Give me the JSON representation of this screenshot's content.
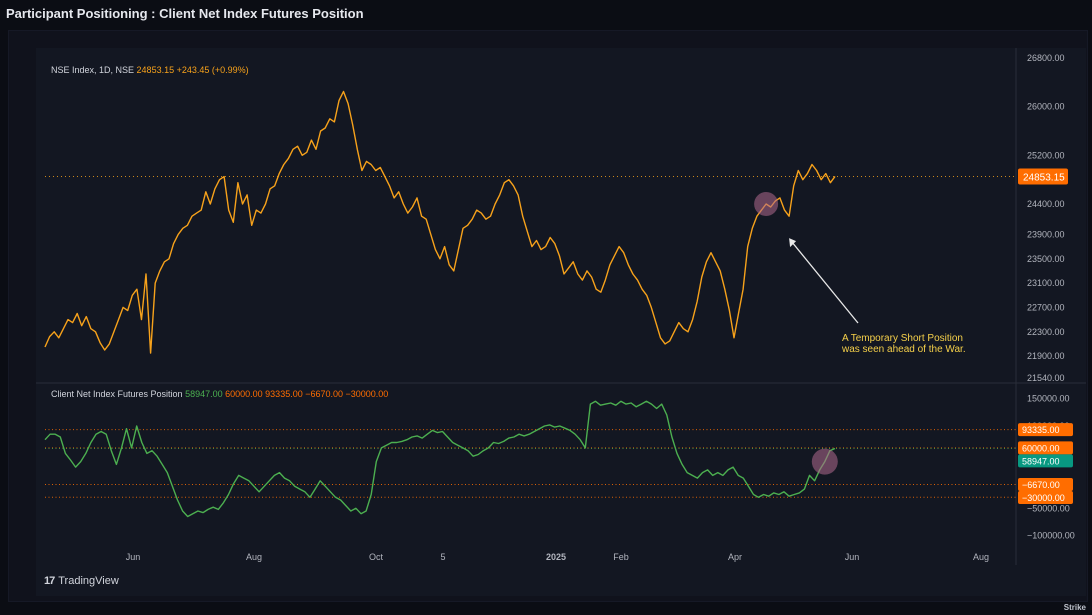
{
  "page": {
    "title": "Participant Positioning : Client Net Index Futures Position",
    "tradingview_label": "TradingView",
    "watermark": "Strike"
  },
  "colors": {
    "background": "#131722",
    "price_line": "#f7a21b",
    "position_line": "#4caf50",
    "label_orange": "#ff6d00",
    "label_green": "#089981",
    "annotation": "#f5d04a",
    "highlight": "#b06a8e"
  },
  "chart_data": [
    {
      "type": "line",
      "title": "NSE Index, 1D, NSE",
      "legend": {
        "name": "NSE Index, 1D, NSE",
        "value": "24853.15",
        "change": "+243.45 (+0.99%)"
      },
      "ylim": [
        21540,
        26800
      ],
      "y_ticks": [
        "26800.00",
        "26000.00",
        "25200.00",
        "24400.00",
        "23900.00",
        "23500.00",
        "23100.00",
        "22700.00",
        "22300.00",
        "21900.00",
        "21540.00"
      ],
      "last_price_label": "24853.15",
      "annotation": [
        "A Temporary Short Position",
        "was seen ahead of the War."
      ],
      "series": [
        {
          "color": "#f7a21b",
          "values": [
            22050,
            22220,
            22300,
            22200,
            22350,
            22500,
            22450,
            22600,
            22400,
            22550,
            22350,
            22300,
            22120,
            22000,
            22100,
            22300,
            22500,
            22700,
            22650,
            22900,
            23000,
            22500,
            23250,
            21950,
            23100,
            23300,
            23450,
            23500,
            23750,
            23900,
            24000,
            24050,
            24200,
            24250,
            24300,
            24600,
            24400,
            24650,
            24800,
            24850,
            24300,
            24100,
            24750,
            24400,
            24550,
            24050,
            24300,
            24250,
            24400,
            24650,
            24700,
            24900,
            25050,
            25150,
            25300,
            25350,
            25200,
            25250,
            25450,
            25300,
            25600,
            25650,
            25800,
            25750,
            26100,
            26250,
            26050,
            25700,
            25300,
            24950,
            25100,
            25050,
            24950,
            25000,
            24850,
            24700,
            24500,
            24600,
            24400,
            24250,
            24350,
            24500,
            24200,
            24150,
            23900,
            23650,
            23500,
            23700,
            23400,
            23300,
            23650,
            24000,
            24050,
            24150,
            24300,
            24250,
            24150,
            24200,
            24400,
            24550,
            24750,
            24800,
            24700,
            24550,
            24200,
            23950,
            23700,
            23800,
            23650,
            23700,
            23850,
            23750,
            23550,
            23250,
            23350,
            23450,
            23250,
            23150,
            23300,
            23200,
            23000,
            22950,
            23150,
            23400,
            23550,
            23700,
            23600,
            23400,
            23250,
            23150,
            23000,
            22900,
            22700,
            22450,
            22200,
            22100,
            22150,
            22300,
            22450,
            22350,
            22300,
            22500,
            22800,
            23200,
            23450,
            23600,
            23450,
            23300,
            23000,
            22650,
            22200,
            22600,
            23000,
            23700,
            24000,
            24200,
            24300,
            24400,
            24350,
            24450,
            24500,
            24300,
            24200,
            24700,
            24950,
            24800,
            24900,
            25050,
            24950,
            24800,
            24900,
            24750,
            24853.15
          ]
        }
      ]
    },
    {
      "type": "line",
      "title": "Client Net Index Futures Position",
      "legend": {
        "name": "Client Net Index Futures Position",
        "values": [
          "58947.00",
          "60000.00",
          "93335.00",
          "−6670.00",
          "−30000.00"
        ]
      },
      "ylim": [
        -117000,
        162000
      ],
      "y_ticks": [
        "150000.00",
        "100000.00",
        "−50000.00",
        "−100000.00"
      ],
      "hlines": [
        93335,
        60000,
        -6670,
        -30000
      ],
      "last_value": 58947,
      "value_labels": [
        {
          "text": "93335.00",
          "value": 93335,
          "color": "#ff6d00"
        },
        {
          "text": "60000.00",
          "value": 60000,
          "color": "#ff6d00"
        },
        {
          "text": "58947.00",
          "value": 58947,
          "color": "#089981"
        },
        {
          "text": "−6670.00",
          "value": -6670,
          "color": "#ff6d00"
        },
        {
          "text": "−30000.00",
          "value": -30000,
          "color": "#ff6d00"
        }
      ],
      "series": [
        {
          "color": "#4caf50",
          "values": [
            75000,
            85000,
            85000,
            80000,
            50000,
            38000,
            25000,
            35000,
            50000,
            70000,
            85000,
            90000,
            85000,
            55000,
            30000,
            60000,
            95000,
            60000,
            100000,
            70000,
            50000,
            55000,
            45000,
            30000,
            15000,
            -10000,
            -35000,
            -55000,
            -65000,
            -60000,
            -55000,
            -58000,
            -52000,
            -48000,
            -52000,
            -40000,
            -25000,
            -5000,
            10000,
            5000,
            0,
            -10000,
            -20000,
            -10000,
            0,
            10000,
            15000,
            5000,
            0,
            -10000,
            -15000,
            -20000,
            -30000,
            -15000,
            0,
            -10000,
            -20000,
            -30000,
            -35000,
            -45000,
            -55000,
            -50000,
            -60000,
            -55000,
            -25000,
            35000,
            60000,
            65000,
            70000,
            70000,
            72000,
            75000,
            80000,
            82000,
            78000,
            85000,
            92000,
            88000,
            90000,
            80000,
            70000,
            65000,
            60000,
            55000,
            45000,
            48000,
            55000,
            60000,
            70000,
            68000,
            72000,
            78000,
            80000,
            85000,
            82000,
            85000,
            90000,
            95000,
            100000,
            102000,
            98000,
            100000,
            96000,
            92000,
            85000,
            75000,
            60000,
            140000,
            145000,
            138000,
            140000,
            142000,
            138000,
            145000,
            140000,
            142000,
            135000,
            140000,
            145000,
            140000,
            132000,
            140000,
            120000,
            80000,
            50000,
            30000,
            15000,
            10000,
            5000,
            15000,
            20000,
            10000,
            15000,
            10000,
            20000,
            25000,
            10000,
            5000,
            -10000,
            -25000,
            -30000,
            -25000,
            -28000,
            -22000,
            -25000,
            -20000,
            -28000,
            -25000,
            -22000,
            -15000,
            10000,
            0,
            20000,
            35000,
            55000,
            58947
          ]
        }
      ]
    }
  ],
  "x_axis": {
    "tick_labels": [
      "Jun",
      "Aug",
      "Oct",
      "5",
      "2025",
      "Feb",
      "Apr",
      "Jun",
      "Aug"
    ],
    "bold_labels": [
      "2025"
    ]
  }
}
